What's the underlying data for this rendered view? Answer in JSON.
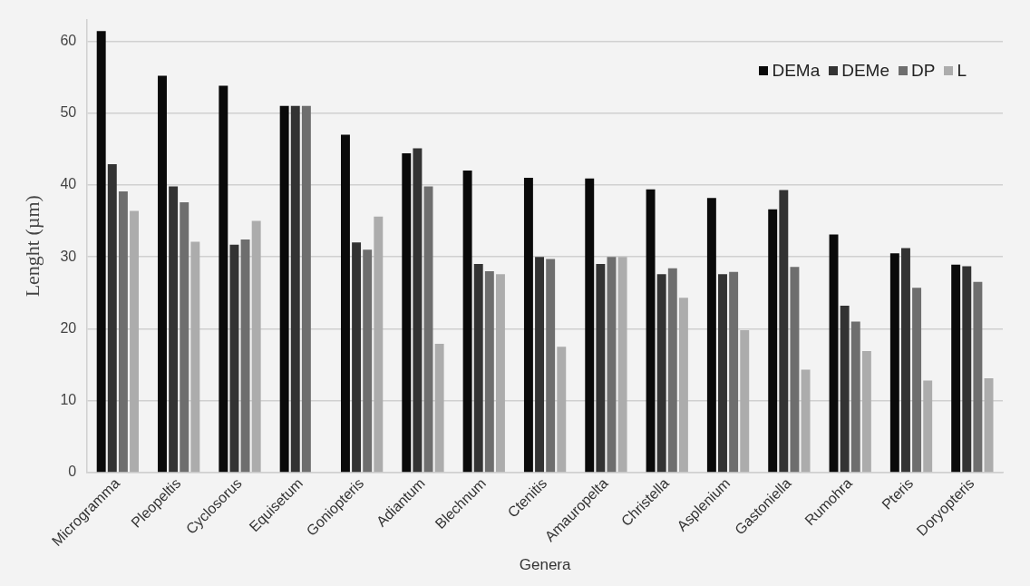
{
  "chart_data": {
    "type": "bar",
    "xlabel": "Genera",
    "ylabel": "Lenght (µm)",
    "categories": [
      "Microgramma",
      "Pleopeltis",
      "Cyclosorus",
      "Equisetum",
      "Goniopteris",
      "Adiantum",
      "Blechnum",
      "Ctenitis",
      "Amauropelta",
      "Christella",
      "Asplenium",
      "Gastoniella",
      "Rumohra",
      "Pteris",
      "Doryopteris"
    ],
    "series": [
      {
        "name": "DEMa",
        "color": "#0a0a0a",
        "values": [
          61.4,
          55.2,
          53.8,
          51,
          47,
          44.4,
          42,
          41,
          40.9,
          39.4,
          38.2,
          36.6,
          33.1,
          30.5,
          28.9
        ]
      },
      {
        "name": "DEMe",
        "color": "#333333",
        "values": [
          42.9,
          39.8,
          31.7,
          51,
          32,
          45.1,
          29,
          30,
          29,
          27.6,
          27.6,
          39.3,
          23.2,
          31.2,
          28.7
        ]
      },
      {
        "name": "DP",
        "color": "#6e6e6e",
        "values": [
          39.1,
          37.6,
          32.4,
          51,
          31,
          39.8,
          28,
          29.7,
          30,
          28.4,
          27.9,
          28.6,
          21,
          25.7,
          26.5
        ]
      },
      {
        "name": "L",
        "color": "#acacac",
        "values": [
          36.4,
          32.1,
          35,
          null,
          35.6,
          17.9,
          27.6,
          17.5,
          30,
          24.3,
          19.8,
          14.3,
          16.9,
          12.8,
          13.1
        ]
      }
    ],
    "ylim": [
      0,
      63
    ],
    "yticks": [
      0,
      10,
      20,
      30,
      40,
      50,
      60
    ],
    "grid": "y",
    "legend": "top right"
  }
}
